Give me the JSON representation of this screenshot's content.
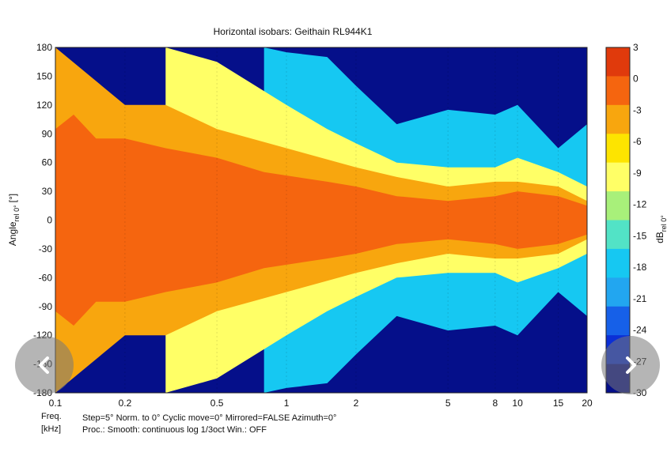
{
  "chart_data": {
    "type": "heatmap",
    "title": "Horizontal isobars: Geithain  RL944K1",
    "xlabel": "Freq. [kHz]",
    "ylabel": "Angle_rel 0° [°]",
    "colorbar_label": "dB_rel 0°",
    "x_scale": "log",
    "xlim": [
      0.1,
      20
    ],
    "ylim": [
      -180,
      180
    ],
    "x_ticks": [
      {
        "value": 0.1,
        "label": "0.1"
      },
      {
        "value": 0.2,
        "label": "0.2"
      },
      {
        "value": 0.5,
        "label": "0.5"
      },
      {
        "value": 1,
        "label": "1"
      },
      {
        "value": 2,
        "label": "2"
      },
      {
        "value": 5,
        "label": "5"
      },
      {
        "value": 8,
        "label": "8"
      },
      {
        "value": 10,
        "label": "10"
      },
      {
        "value": 15,
        "label": "15"
      },
      {
        "value": 20,
        "label": "20"
      }
    ],
    "y_ticks": [
      180,
      150,
      120,
      90,
      60,
      30,
      0,
      -30,
      -60,
      -90,
      -120,
      -150,
      -180
    ],
    "colorbar_ticks": [
      3,
      0,
      -3,
      -6,
      -9,
      -12,
      -15,
      -18,
      -21,
      -24,
      -27,
      -30
    ],
    "color_levels": [
      {
        "max": 3,
        "min": 0,
        "color": "#e03a0c"
      },
      {
        "max": 0,
        "min": -3,
        "color": "#f5650f"
      },
      {
        "max": -3,
        "min": -6,
        "color": "#f8a60e"
      },
      {
        "max": -6,
        "min": -9,
        "color": "#fde400"
      },
      {
        "max": -9,
        "min": -12,
        "color": "#ffff66"
      },
      {
        "max": -12,
        "min": -15,
        "color": "#a8f07a"
      },
      {
        "max": -15,
        "min": -18,
        "color": "#52e3c6"
      },
      {
        "max": -18,
        "min": -21,
        "color": "#16c8f2"
      },
      {
        "max": -21,
        "min": -24,
        "color": "#22a6f0"
      },
      {
        "max": -24,
        "min": -27,
        "color": "#1660e8"
      },
      {
        "max": -27,
        "min": -30,
        "color": "#0b2fd6"
      },
      {
        "max": -30,
        "min": -33,
        "color": "#050f8a"
      }
    ],
    "contour_boundaries_deg": [
      {
        "level_db": -3,
        "x": [
          0.1,
          0.12,
          0.15,
          0.2,
          0.3,
          0.5,
          0.8,
          1.5,
          2,
          3,
          5,
          8,
          10,
          15,
          20
        ],
        "angle": [
          95,
          110,
          85,
          85,
          75,
          65,
          50,
          40,
          35,
          25,
          20,
          25,
          30,
          25,
          15
        ]
      },
      {
        "level_db": -6,
        "x": [
          0.1,
          0.2,
          0.3,
          0.5,
          1,
          2,
          3,
          5,
          8,
          10,
          15,
          20
        ],
        "angle": [
          180,
          120,
          120,
          95,
          75,
          55,
          45,
          35,
          40,
          40,
          35,
          20
        ]
      },
      {
        "level_db": -12,
        "x": [
          0.3,
          0.5,
          1,
          1.5,
          2,
          3,
          5,
          8,
          10,
          15,
          20
        ],
        "angle": [
          180,
          165,
          120,
          95,
          80,
          60,
          55,
          55,
          65,
          50,
          35
        ]
      },
      {
        "level_db": -21,
        "x": [
          0.8,
          1,
          1.5,
          2,
          3,
          5,
          8,
          10,
          15,
          20
        ],
        "angle": [
          180,
          175,
          170,
          140,
          100,
          115,
          110,
          120,
          75,
          100
        ]
      }
    ]
  },
  "footer": {
    "freq_label": "Freq.",
    "khz_label": "[kHz]",
    "line1": "Step=5°   Norm. to 0°   Cyclic move=0°   Mirrored=FALSE   Azimuth=0°",
    "line2": "Proc.: Smooth: continuous log 1/3oct    Win.: OFF"
  },
  "labels": {
    "ylabel_main": "Angle",
    "ylabel_sub": "rel 0°",
    "ylabel_unit": "[°]",
    "cbar_main": "dB",
    "cbar_sub": "rel 0°"
  },
  "nav": {
    "prev_icon": "chevron-left-icon",
    "next_icon": "chevron-right-icon"
  }
}
